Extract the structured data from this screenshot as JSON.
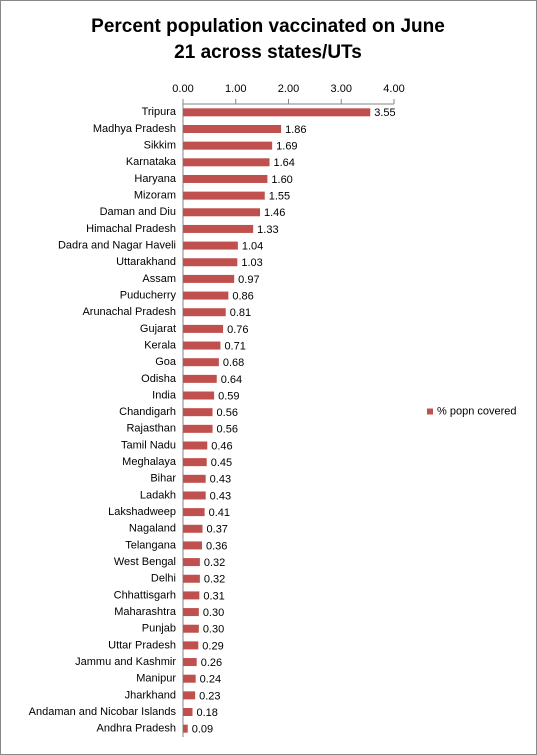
{
  "chart_data": {
    "type": "bar",
    "orientation": "horizontal",
    "title": "Percent population vaccinated on June 21 across states/UTs",
    "categories": [
      "Tripura",
      "Madhya Pradesh",
      "Sikkim",
      "Karnataka",
      "Haryana",
      "Mizoram",
      "Daman and Diu",
      "Himachal Pradesh",
      "Dadra and Nagar Haveli",
      "Uttarakhand",
      "Assam",
      "Puducherry",
      "Arunachal Pradesh",
      "Gujarat",
      "Kerala",
      "Goa",
      "Odisha",
      "India",
      "Chandigarh",
      "Rajasthan",
      "Tamil Nadu",
      "Meghalaya",
      "Bihar",
      "Ladakh",
      "Lakshadweep",
      "Nagaland",
      "Telangana",
      "West Bengal",
      "Delhi",
      "Chhattisgarh",
      "Maharashtra",
      "Punjab",
      "Uttar Pradesh",
      "Jammu and Kashmir",
      "Manipur",
      "Jharkhand",
      "Andaman and Nicobar Islands",
      "Andhra Pradesh"
    ],
    "series": [
      {
        "name": "% popn covered",
        "color": "#c0504d",
        "values": [
          3.55,
          1.86,
          1.69,
          1.64,
          1.6,
          1.55,
          1.46,
          1.33,
          1.04,
          1.03,
          0.97,
          0.86,
          0.81,
          0.76,
          0.71,
          0.68,
          0.64,
          0.59,
          0.56,
          0.56,
          0.46,
          0.45,
          0.43,
          0.43,
          0.41,
          0.37,
          0.36,
          0.32,
          0.32,
          0.31,
          0.3,
          0.3,
          0.29,
          0.26,
          0.24,
          0.23,
          0.18,
          0.09
        ],
        "value_labels": [
          "3.55",
          "1.86",
          "1.69",
          "1.64",
          "1.60",
          "1.55",
          "1.46",
          "1.33",
          "1.04",
          "1.03",
          "0.97",
          "0.86",
          "0.81",
          "0.76",
          "0.71",
          "0.68",
          "0.64",
          "0.59",
          "0.56",
          "0.56",
          "0.46",
          "0.45",
          "0.43",
          "0.43",
          "0.41",
          "0.37",
          "0.36",
          "0.32",
          "0.32",
          "0.31",
          "0.30",
          "0.30",
          "0.29",
          "0.26",
          "0.24",
          "0.23",
          "0.18",
          "0.09"
        ]
      }
    ],
    "xlim": [
      0,
      4
    ],
    "xticks": [
      {
        "value": 0,
        "label": "0.00"
      },
      {
        "value": 1,
        "label": "1.00"
      },
      {
        "value": 2,
        "label": "2.00"
      },
      {
        "value": 3,
        "label": "3.00"
      },
      {
        "value": 4,
        "label": "4.00"
      }
    ],
    "legend": "right"
  }
}
